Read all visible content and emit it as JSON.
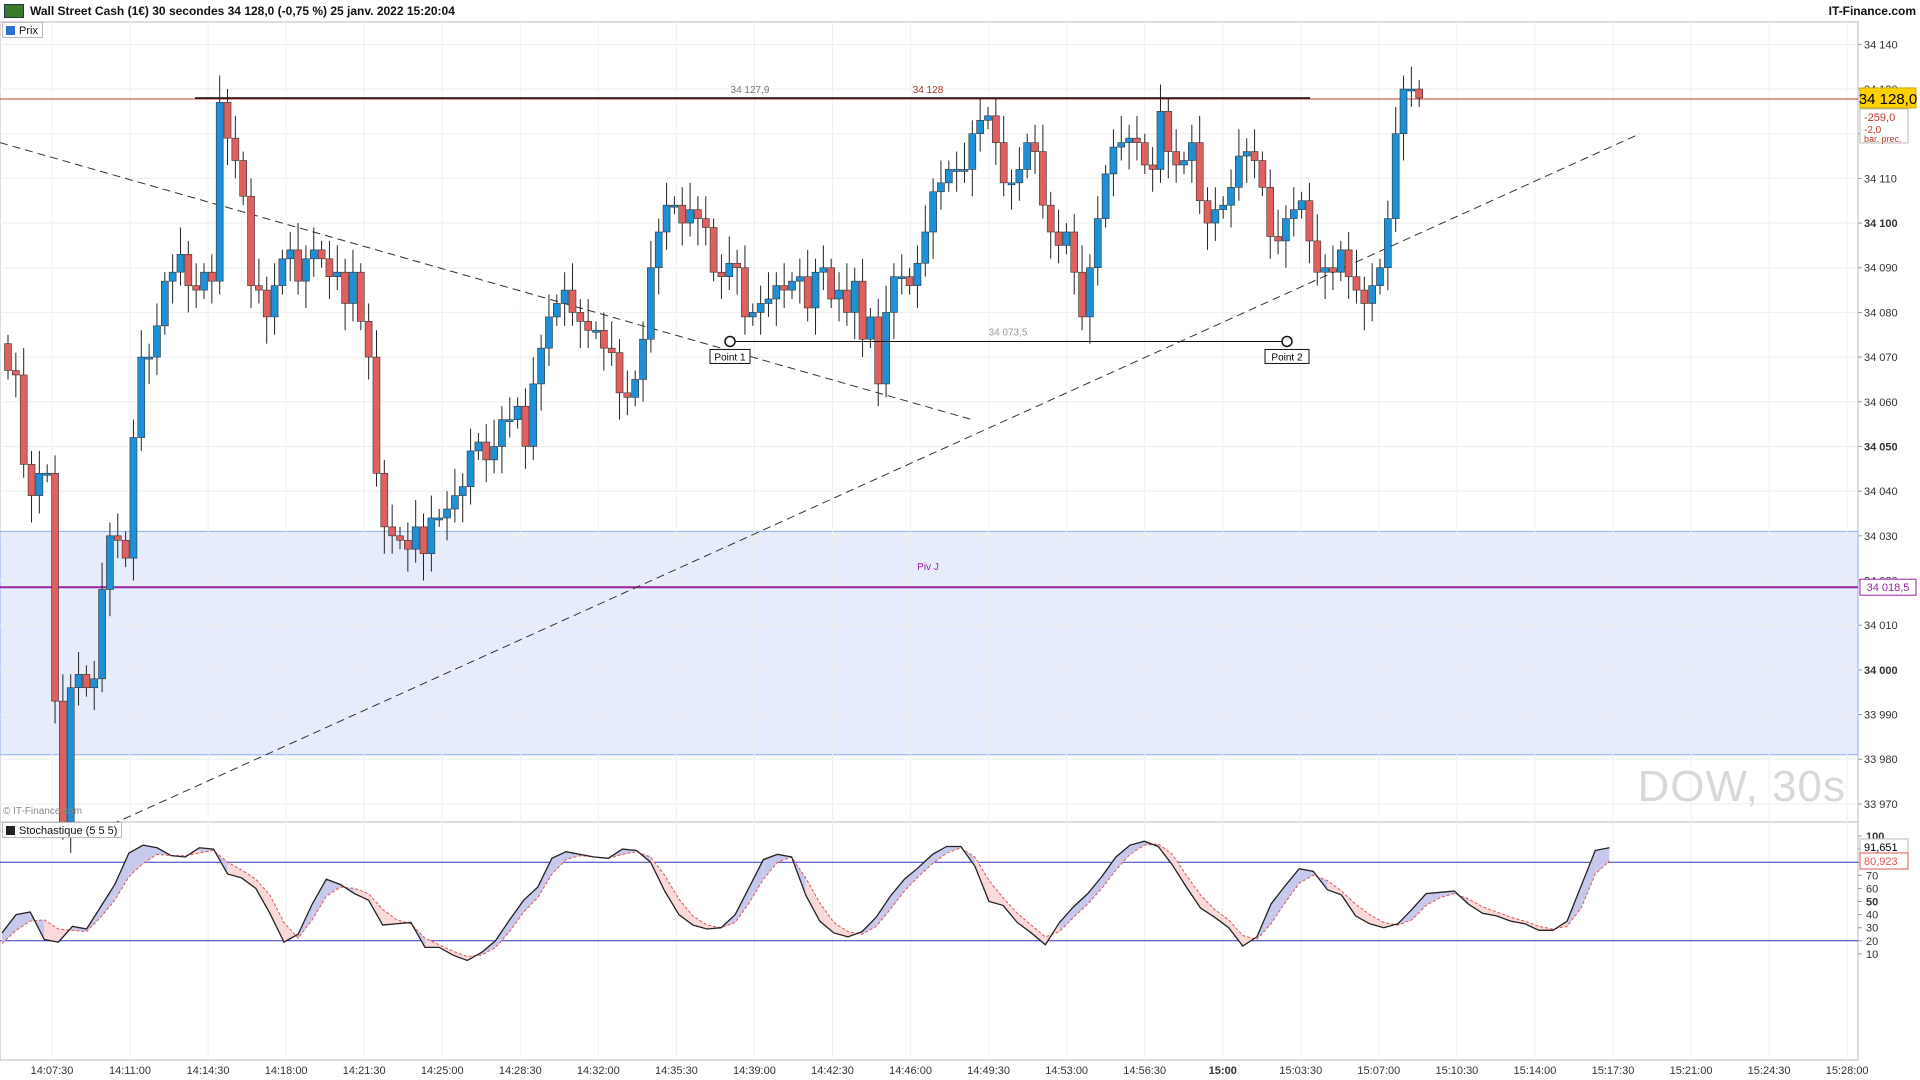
{
  "header": {
    "title": "Wall Street Cash (1€) 30 secondes 34 128,0 (-0,75 %) 25 janv. 2022 15:20:04",
    "brand": "IT-Finance.com",
    "copyright": "© IT-Finance.com",
    "watermark": "DOW, 30s"
  },
  "price_pane": {
    "label": "Prix",
    "last_price": "34 128,0",
    "change": "-259,0",
    "prev_change": "-2,0",
    "prev_label": "bar. prec.",
    "high_line_left_label": "34 127,9",
    "high_line_label": "34 128",
    "pivot_label": "Piv J",
    "pivot_value": "34 018,5",
    "measure_label": "34 073,5",
    "point1_label": "Point 1",
    "point2_label": "Point 2",
    "colors": {
      "up": "#1e90d8",
      "down": "#e06060",
      "pivot": "#9b1fa8",
      "zone": "#e6ecfb"
    }
  },
  "stoch_pane": {
    "label": "Stochastique (5 5 5)",
    "k_value": "91,651",
    "d_value": "80,923",
    "ticks": [
      "100",
      "90",
      "80",
      "70",
      "60",
      "50",
      "40",
      "30",
      "20",
      "10"
    ]
  },
  "chart_data": [
    {
      "type": "candlestick",
      "title": "Wall Street Cash (1€) 30 secondes",
      "xlabel": "",
      "ylabel": "",
      "ylim": [
        33960,
        34145
      ],
      "y_ticks": [
        34140,
        34130,
        34120,
        34110,
        34100,
        34090,
        34080,
        34070,
        34060,
        34050,
        34040,
        34030,
        34020,
        34010,
        34000,
        33990,
        33980,
        33970
      ],
      "y_tick_labels": [
        "34 140",
        "34 130",
        "34 120",
        "34 110",
        "34 100",
        "34 090",
        "34 080",
        "34 070",
        "34 060",
        "34 050",
        "34 040",
        "34 030",
        "34 020",
        "34 010",
        "34 000",
        "33 990",
        "33 980",
        "33 970"
      ],
      "x_tick_labels": [
        "14:07:30",
        "14:11:00",
        "14:14:30",
        "14:18:00",
        "14:21:30",
        "14:25:00",
        "14:28:30",
        "14:32:00",
        "14:35:30",
        "14:39:00",
        "14:42:30",
        "14:46:00",
        "14:49:30",
        "14:53:00",
        "14:56:30",
        "15:00",
        "15:03:30",
        "15:07:00",
        "15:10:30",
        "15:14:00",
        "15:17:30",
        "15:21:00",
        "15:24:30",
        "15:28:00"
      ],
      "close": [
        34067,
        34066,
        34046,
        34039,
        34044,
        34044,
        33993,
        33965,
        33996,
        33999,
        33996,
        33998,
        34018,
        34030,
        34029,
        34025,
        34052,
        34070,
        34070,
        34077,
        34087,
        34089,
        34093,
        34086,
        34085,
        34089,
        34087,
        34127,
        34119,
        34114,
        34106,
        34086,
        34085,
        34079,
        34086,
        34092,
        34094,
        34087,
        34092,
        34094,
        34092,
        34088,
        34089,
        34082,
        34089,
        34078,
        34070,
        34044,
        34032,
        34030,
        34029,
        34027,
        34032,
        34026,
        34034,
        34034,
        34036,
        34039,
        34041,
        34049,
        34051,
        34047,
        34050,
        34056,
        34056,
        34059,
        34050,
        34064,
        34072,
        34079,
        34082,
        34085,
        34080,
        34078,
        34076,
        34076,
        34072,
        34071,
        34062,
        34061,
        34065,
        34074,
        34090,
        34098,
        34104,
        34104,
        34100,
        34103,
        34101,
        34099,
        34089,
        34088,
        34091,
        34090,
        34079,
        34080,
        34082,
        34083,
        34086,
        34085,
        34087,
        34088,
        34081,
        34089,
        34090,
        34083,
        34085,
        34080,
        34087,
        34074,
        34079,
        34064,
        34080,
        34088,
        34088,
        34086,
        34091,
        34098,
        34107,
        34109,
        34112,
        34112,
        34112,
        34120,
        34123,
        34124,
        34118,
        34109,
        34109,
        34112,
        34118,
        34116,
        34104,
        34098,
        34095,
        34098,
        34089,
        34079,
        34090,
        34101,
        34111,
        34117,
        34118,
        34119,
        34118,
        34113,
        34112,
        34125,
        34116,
        34113,
        34114,
        34118,
        34105,
        34100,
        34103,
        34104,
        34108,
        34115,
        34116,
        34114,
        34108,
        34097,
        34096,
        34101,
        34103,
        34105,
        34096,
        34089,
        34090,
        34089,
        34094,
        34088,
        34085,
        34082,
        34086,
        34090,
        34101,
        34120,
        34130,
        34130,
        34128
      ],
      "ohlc_note": "30-second candles, estimated from the chart"
    },
    {
      "type": "line",
      "title": "Stochastique (5 5 5)",
      "ylim": [
        0,
        100
      ],
      "series": [
        {
          "name": "%K",
          "values": [
            26,
            40,
            42,
            21,
            19,
            31,
            29,
            46,
            63,
            87,
            93,
            91,
            85,
            84,
            91,
            90,
            71,
            68,
            60,
            41,
            19,
            25,
            48,
            67,
            63,
            56,
            51,
            32,
            33,
            34,
            15,
            15,
            9,
            5,
            11,
            20,
            36,
            51,
            61,
            83,
            88,
            86,
            84,
            83,
            90,
            89,
            80,
            58,
            40,
            32,
            29,
            30,
            40,
            61,
            82,
            86,
            84,
            55,
            35,
            26,
            23,
            27,
            38,
            54,
            67,
            76,
            86,
            92,
            92,
            77,
            50,
            47,
            34,
            26,
            17,
            34,
            46,
            56,
            69,
            84,
            93,
            96,
            92,
            78,
            61,
            45,
            38,
            30,
            16,
            23,
            48,
            62,
            75,
            73,
            59,
            55,
            39,
            33,
            30,
            33,
            44,
            56,
            57,
            58,
            48,
            41,
            39,
            35,
            33,
            28,
            28,
            35,
            62,
            89,
            91
          ]
        },
        {
          "name": "%D",
          "values": [
            18,
            28,
            35,
            36,
            29,
            28,
            27,
            38,
            51,
            69,
            79,
            86,
            85,
            85,
            87,
            89,
            80,
            74,
            67,
            55,
            34,
            22,
            36,
            54,
            61,
            60,
            56,
            44,
            36,
            33,
            22,
            17,
            12,
            8,
            9,
            15,
            27,
            42,
            53,
            71,
            82,
            85,
            84,
            83,
            86,
            88,
            84,
            70,
            52,
            39,
            32,
            30,
            34,
            49,
            67,
            80,
            84,
            68,
            49,
            34,
            27,
            25,
            31,
            44,
            58,
            69,
            79,
            87,
            91,
            84,
            66,
            53,
            41,
            32,
            23,
            27,
            38,
            48,
            60,
            74,
            86,
            93,
            94,
            86,
            70,
            55,
            44,
            36,
            24,
            21,
            33,
            49,
            64,
            70,
            66,
            58,
            48,
            40,
            34,
            32,
            36,
            47,
            53,
            56,
            52,
            46,
            42,
            38,
            35,
            31,
            29,
            31,
            45,
            71,
            81
          ]
        }
      ],
      "levels": [
        80,
        20
      ]
    }
  ]
}
